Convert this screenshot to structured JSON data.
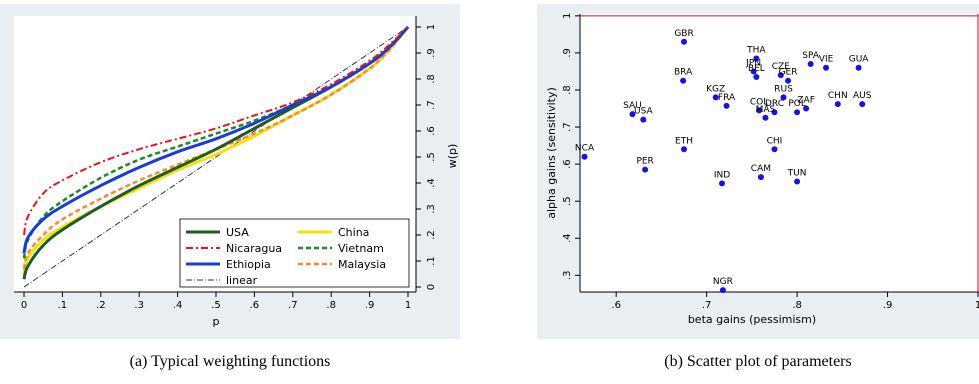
{
  "chart_data": [
    {
      "type": "line",
      "caption": "(a) Typical weighting functions",
      "xlabel": "p",
      "ylabel": "w(p)",
      "xlim": [
        0,
        1
      ],
      "ylim": [
        0,
        1
      ],
      "x_ticks": [
        "0",
        ".1",
        ".2",
        ".3",
        ".4",
        ".5",
        ".6",
        ".7",
        ".8",
        ".9",
        "1"
      ],
      "y_ticks": [
        "0",
        ".1",
        ".2",
        ".3",
        ".4",
        ".5",
        ".6",
        ".7",
        ".8",
        ".9",
        "1"
      ],
      "grid": false,
      "legend_position": "bottom-right",
      "x": [
        0,
        0.01,
        0.05,
        0.1,
        0.2,
        0.3,
        0.4,
        0.5,
        0.6,
        0.7,
        0.8,
        0.9,
        0.95,
        1.0
      ],
      "series": [
        {
          "name": "USA",
          "color": "#1f5c1f",
          "dash": "",
          "width": 3,
          "values": [
            0.03,
            0.08,
            0.16,
            0.22,
            0.31,
            0.39,
            0.46,
            0.53,
            0.61,
            0.69,
            0.77,
            0.86,
            0.92,
            1.0
          ]
        },
        {
          "name": "Nicaragua",
          "color": "#e8141b",
          "dash": "7 3 2 3",
          "width": 2,
          "values": [
            0.2,
            0.27,
            0.36,
            0.41,
            0.48,
            0.53,
            0.57,
            0.61,
            0.66,
            0.71,
            0.78,
            0.87,
            0.93,
            1.0
          ]
        },
        {
          "name": "Ethiopia",
          "color": "#1a3bd6",
          "dash": "",
          "width": 3,
          "values": [
            0.13,
            0.19,
            0.26,
            0.31,
            0.39,
            0.46,
            0.52,
            0.57,
            0.63,
            0.7,
            0.77,
            0.86,
            0.92,
            1.0
          ]
        },
        {
          "name": "linear",
          "color": "#333333",
          "dash": "6 2 1 2",
          "width": 1,
          "values": [
            0,
            0.01,
            0.05,
            0.1,
            0.2,
            0.3,
            0.4,
            0.5,
            0.6,
            0.7,
            0.8,
            0.9,
            0.95,
            1.0
          ]
        },
        {
          "name": "China",
          "color": "#f5e10a",
          "dash": "",
          "width": 3,
          "values": [
            0.05,
            0.11,
            0.18,
            0.23,
            0.31,
            0.38,
            0.45,
            0.51,
            0.58,
            0.66,
            0.74,
            0.84,
            0.91,
            1.0
          ]
        },
        {
          "name": "Vietnam",
          "color": "#1f8a1f",
          "dash": "5 3",
          "width": 2.5,
          "values": [
            0.11,
            0.18,
            0.27,
            0.33,
            0.42,
            0.49,
            0.54,
            0.59,
            0.64,
            0.7,
            0.77,
            0.86,
            0.92,
            1.0
          ]
        },
        {
          "name": "Malaysia",
          "color": "#f28a3a",
          "dash": "5 3",
          "width": 2.5,
          "values": [
            0.07,
            0.13,
            0.2,
            0.26,
            0.34,
            0.41,
            0.47,
            0.53,
            0.59,
            0.66,
            0.74,
            0.84,
            0.91,
            1.0
          ]
        }
      ]
    },
    {
      "type": "scatter",
      "caption": "(b) Scatter plot of parameters",
      "xlabel": "beta gains (pessimism)",
      "ylabel": "alpha gains (sensitivity)",
      "xlim": [
        0.56,
        1.0
      ],
      "ylim": [
        0.255,
        1.005
      ],
      "x_ticks": [
        ".6",
        ".7",
        ".8",
        ".9",
        "1"
      ],
      "y_ticks": [
        ".3",
        ".4",
        ".5",
        ".6",
        ".7",
        ".8",
        ".9",
        "1"
      ],
      "grid": false,
      "reference_lines": [
        "y = 1",
        "x = 1"
      ],
      "reference_color": "#c0143c",
      "point_color": "#1414e0",
      "points": [
        {
          "label": "GBR",
          "x": 0.675,
          "y": 0.93
        },
        {
          "label": "THA",
          "x": 0.755,
          "y": 0.885
        },
        {
          "label": "SPA",
          "x": 0.815,
          "y": 0.87
        },
        {
          "label": "VIE",
          "x": 0.832,
          "y": 0.86
        },
        {
          "label": "GUA",
          "x": 0.868,
          "y": 0.86
        },
        {
          "label": "JPN",
          "x": 0.752,
          "y": 0.85
        },
        {
          "label": "CZE",
          "x": 0.782,
          "y": 0.84
        },
        {
          "label": "BEL",
          "x": 0.755,
          "y": 0.835
        },
        {
          "label": "GER",
          "x": 0.79,
          "y": 0.825
        },
        {
          "label": "BRA",
          "x": 0.674,
          "y": 0.825
        },
        {
          "label": "RUS",
          "x": 0.785,
          "y": 0.78
        },
        {
          "label": "KGZ",
          "x": 0.71,
          "y": 0.78
        },
        {
          "label": "CHN",
          "x": 0.845,
          "y": 0.762
        },
        {
          "label": "AUS",
          "x": 0.872,
          "y": 0.762
        },
        {
          "label": "ZAF",
          "x": 0.81,
          "y": 0.75
        },
        {
          "label": "FRA",
          "x": 0.722,
          "y": 0.757
        },
        {
          "label": "POL",
          "x": 0.8,
          "y": 0.74
        },
        {
          "label": "SAU",
          "x": 0.618,
          "y": 0.735
        },
        {
          "label": "COL",
          "x": 0.758,
          "y": 0.745
        },
        {
          "label": "DRC",
          "x": 0.775,
          "y": 0.74
        },
        {
          "label": "USA",
          "x": 0.63,
          "y": 0.72
        },
        {
          "label": "MAS",
          "x": 0.765,
          "y": 0.725
        },
        {
          "label": "ETH",
          "x": 0.675,
          "y": 0.64
        },
        {
          "label": "CHI",
          "x": 0.775,
          "y": 0.64
        },
        {
          "label": "NCA",
          "x": 0.565,
          "y": 0.62
        },
        {
          "label": "PER",
          "x": 0.632,
          "y": 0.585
        },
        {
          "label": "CAM",
          "x": 0.76,
          "y": 0.565
        },
        {
          "label": "TUN",
          "x": 0.8,
          "y": 0.553
        },
        {
          "label": "IND",
          "x": 0.717,
          "y": 0.548
        },
        {
          "label": "NGR",
          "x": 0.718,
          "y": 0.26
        }
      ]
    }
  ]
}
